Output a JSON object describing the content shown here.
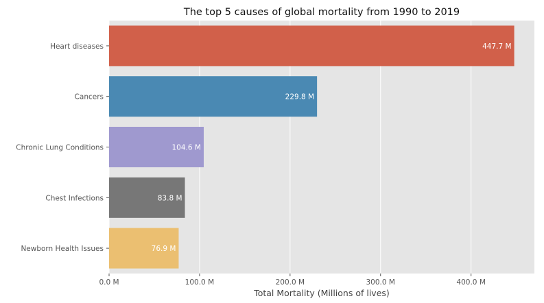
{
  "chart_data": {
    "type": "bar",
    "orientation": "horizontal",
    "title": "The top 5 causes of global mortality from 1990 to 2019",
    "xlabel": "Total Mortality (Millions of lives)",
    "ylabel": "",
    "categories": [
      "Heart diseases",
      "Cancers",
      "Chronic Lung Conditions",
      "Chest Infections",
      "Newborn Health Issues"
    ],
    "values": [
      447.7,
      229.8,
      104.6,
      83.8,
      76.9
    ],
    "data_labels": [
      "447.7 M",
      "229.8 M",
      "104.6 M",
      "83.8 M",
      "76.9 M"
    ],
    "colors": [
      "#d1604a",
      "#4a89b3",
      "#9f99cf",
      "#777777",
      "#ebbf71"
    ],
    "xlim": [
      0,
      470
    ],
    "xticks": [
      0,
      100,
      200,
      300,
      400
    ],
    "xtick_labels": [
      "0.0 M",
      "100.0 M",
      "200.0 M",
      "300.0 M",
      "400.0 M"
    ],
    "grid": true,
    "plot_background": "#e5e5e5",
    "grid_color": "#ffffff"
  }
}
